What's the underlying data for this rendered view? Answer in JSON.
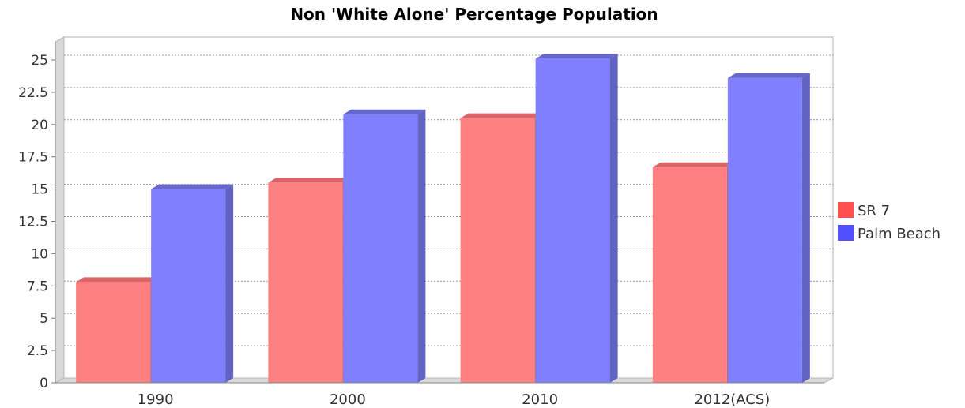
{
  "colors": {
    "series_0": "#ff8080",
    "series_0_top": "#d96666",
    "series_0_side": "#cc6060",
    "series_1": "#8080ff",
    "series_1_top": "#6666cc",
    "series_1_side": "#6262c0"
  },
  "chart_data": {
    "type": "bar",
    "title": "Non 'White Alone' Percentage Population",
    "xlabel": "",
    "ylabel": "",
    "categories": [
      "1990",
      "2000",
      "2010",
      "2012(ACS)"
    ],
    "series": [
      {
        "name": "SR 7",
        "values": [
          7.8,
          15.5,
          20.5,
          16.7
        ]
      },
      {
        "name": "Palm Beach",
        "values": [
          15.0,
          20.8,
          25.1,
          23.6
        ]
      }
    ],
    "ylim": [
      0,
      25
    ],
    "yticks": [
      "0",
      "2.5",
      "5",
      "7.5",
      "10",
      "12.5",
      "15",
      "17.5",
      "20",
      "22.5",
      "25"
    ],
    "grid": true,
    "legend_position": "right"
  }
}
